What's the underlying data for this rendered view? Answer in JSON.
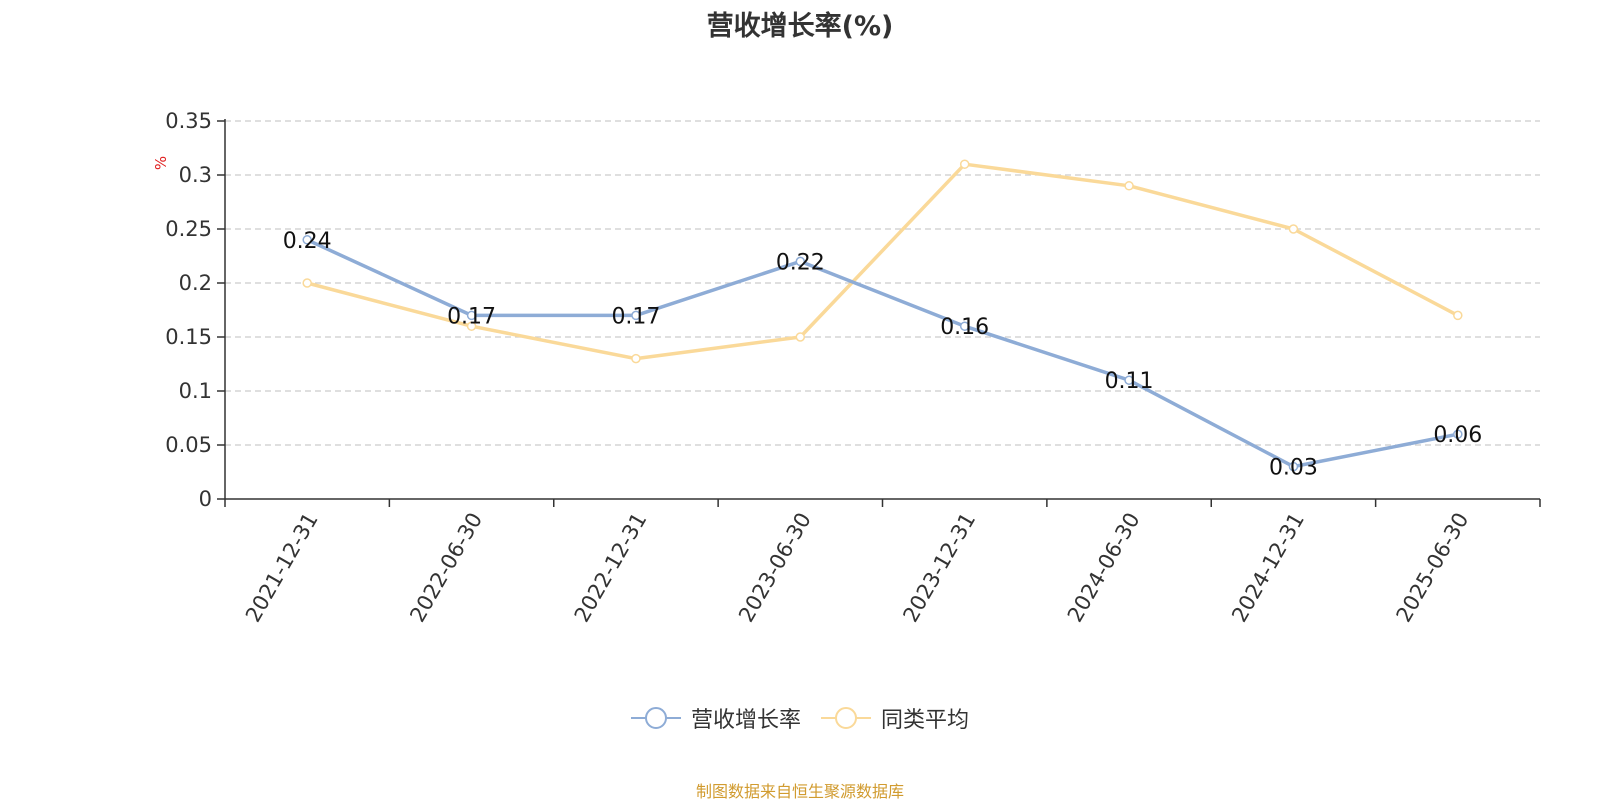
{
  "chart_data": {
    "type": "line",
    "title": "营收增长率(%)",
    "ylabel": "%",
    "xlabel": "",
    "categories": [
      "2021-12-31",
      "2022-06-30",
      "2022-12-31",
      "2023-06-30",
      "2023-12-31",
      "2024-06-30",
      "2024-12-31",
      "2025-06-30"
    ],
    "series": [
      {
        "name": "营收增长率",
        "values": [
          0.24,
          0.17,
          0.17,
          0.22,
          0.16,
          0.11,
          0.03,
          0.06
        ],
        "color": "#8eacd6",
        "labels": [
          "0.24",
          "0.17",
          "0.17",
          "0.22",
          "0.16",
          "0.11",
          "0.03",
          "0.06"
        ]
      },
      {
        "name": "同类平均",
        "values": [
          0.2,
          0.16,
          0.13,
          0.15,
          0.31,
          0.29,
          0.25,
          0.17
        ],
        "color": "#fad999"
      }
    ],
    "ylim": [
      0,
      0.35
    ],
    "yticks": [
      "0",
      "0.05",
      "0.1",
      "0.15",
      "0.2",
      "0.25",
      "0.3",
      "0.35"
    ],
    "grid": true,
    "legend_position": "bottom"
  },
  "source_text": "制图数据来自恒生聚源数据库",
  "colors": {
    "axis": "#333333",
    "grid": "#cccccc",
    "ylabel": "#e02020",
    "source": "#d19b2f"
  }
}
